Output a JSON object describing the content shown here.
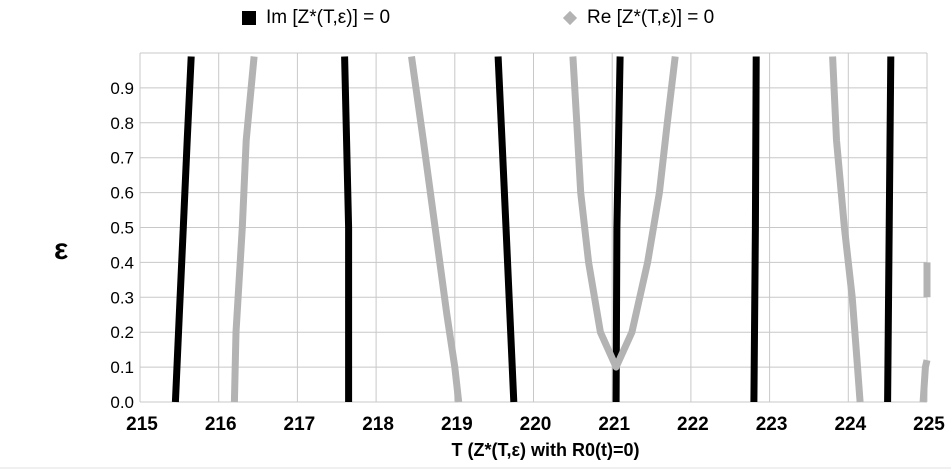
{
  "chart_data": {
    "type": "scatter",
    "title": "",
    "xlabel": "T  (Z*(T,ε) with R0(t)=0)",
    "ylabel": "ε",
    "xlim": [
      215,
      225
    ],
    "ylim": [
      0,
      1
    ],
    "x_ticks": [
      "215",
      "216",
      "217",
      "218",
      "219",
      "220",
      "221",
      "222",
      "223",
      "224",
      "225"
    ],
    "y_ticks": [
      "0.0",
      "0.1",
      "0.2",
      "0.3",
      "0.4",
      "0.5",
      "0.6",
      "0.7",
      "0.8",
      "0.9"
    ],
    "grid": true,
    "legend_position": "top",
    "series": [
      {
        "name": "Im [Z*(T,ε)] = 0",
        "marker": "square",
        "color": "#000000",
        "curves": [
          [
            [
              215.45,
              0.0
            ],
            [
              215.5,
              0.25
            ],
            [
              215.55,
              0.5
            ],
            [
              215.6,
              0.75
            ],
            [
              215.65,
              0.99
            ]
          ],
          [
            [
              217.65,
              0.0
            ],
            [
              217.65,
              0.5
            ],
            [
              217.6,
              0.99
            ]
          ],
          [
            [
              219.75,
              0.0
            ],
            [
              219.7,
              0.25
            ],
            [
              219.65,
              0.5
            ],
            [
              219.6,
              0.75
            ],
            [
              219.55,
              0.99
            ]
          ],
          [
            [
              221.05,
              0.0
            ],
            [
              221.06,
              0.5
            ],
            [
              221.1,
              0.99
            ]
          ],
          [
            [
              222.8,
              0.0
            ],
            [
              222.82,
              0.5
            ],
            [
              222.83,
              0.99
            ]
          ],
          [
            [
              224.5,
              0.0
            ],
            [
              224.52,
              0.5
            ],
            [
              224.54,
              0.99
            ]
          ]
        ]
      },
      {
        "name": "Re [Z*(T,ε)] = 0",
        "marker": "diamond",
        "color": "#b3b3b3",
        "curves": [
          [
            [
              216.2,
              0.0
            ],
            [
              216.22,
              0.2
            ],
            [
              216.3,
              0.5
            ],
            [
              216.35,
              0.75
            ],
            [
              216.45,
              0.99
            ]
          ],
          [
            [
              218.45,
              0.99
            ],
            [
              218.6,
              0.75
            ],
            [
              218.75,
              0.5
            ],
            [
              218.9,
              0.25
            ],
            [
              219.0,
              0.1
            ],
            [
              219.05,
              0.0
            ]
          ],
          [
            [
              220.5,
              0.99
            ],
            [
              220.55,
              0.8
            ],
            [
              220.6,
              0.6
            ],
            [
              220.7,
              0.4
            ],
            [
              220.85,
              0.2
            ],
            [
              221.05,
              0.1
            ],
            [
              221.25,
              0.2
            ],
            [
              221.45,
              0.4
            ],
            [
              221.6,
              0.6
            ],
            [
              221.7,
              0.8
            ],
            [
              221.8,
              0.99
            ]
          ],
          [
            [
              223.8,
              0.99
            ],
            [
              223.85,
              0.75
            ],
            [
              223.95,
              0.5
            ],
            [
              224.05,
              0.3
            ],
            [
              224.1,
              0.15
            ],
            [
              224.15,
              0.0
            ]
          ],
          [
            [
              224.95,
              0.0
            ],
            [
              224.98,
              0.1
            ],
            [
              225.0,
              0.12
            ]
          ],
          [
            [
              225.0,
              0.3
            ],
            [
              225.0,
              0.4
            ]
          ]
        ]
      }
    ]
  }
}
